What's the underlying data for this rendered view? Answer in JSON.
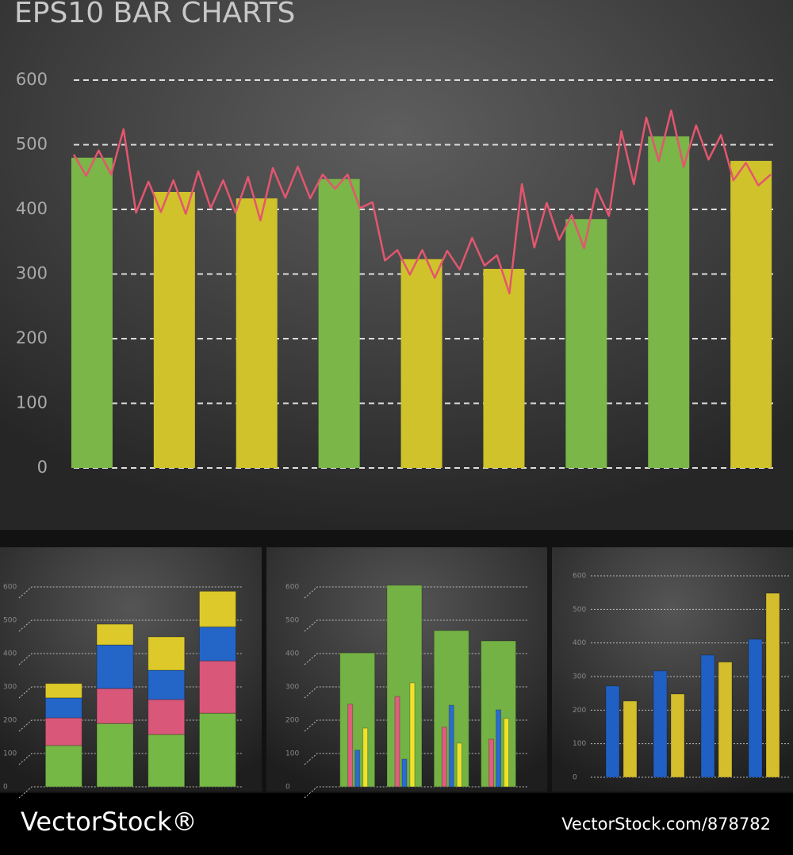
{
  "header": {
    "title": "EPS10 BAR CHARTS"
  },
  "footer": {
    "brand": "VectorStock®",
    "url": "VectorStock.com/878782"
  },
  "chart_data": [
    {
      "type": "barline",
      "ylim": [
        0,
        600
      ],
      "yticks": [
        0,
        100,
        200,
        300,
        400,
        500,
        600
      ],
      "grid": true,
      "series": [
        {
          "colors": [
            "#7ab648",
            "#cfc22a",
            "#cfc22a",
            "#7ab648",
            "#cfc22a",
            "#cfc22a",
            "#7ab648",
            "#7ab648",
            "#cfc22a"
          ],
          "values": [
            480,
            427,
            417,
            447,
            323,
            308,
            385,
            513,
            475
          ]
        },
        {
          "color": "#e4566f",
          "values": [
            485,
            452,
            491,
            454,
            524,
            395,
            443,
            396,
            445,
            393,
            459,
            402,
            445,
            395,
            450,
            383,
            464,
            418,
            466,
            417,
            454,
            432,
            454,
            402,
            411,
            321,
            337,
            299,
            337,
            294,
            336,
            307,
            356,
            313,
            329,
            270,
            439,
            341,
            410,
            353,
            391,
            340,
            432,
            390,
            521,
            439,
            542,
            475,
            553,
            466,
            530,
            477,
            515,
            445,
            472,
            437,
            454
          ]
        }
      ]
    },
    {
      "type": "stacked",
      "ylim": [
        0,
        600
      ],
      "yticks": [
        0,
        100,
        200,
        300,
        400,
        500,
        600
      ],
      "grid": true,
      "series": [
        {
          "color": "#76b846",
          "values": [
            124,
            190,
            157,
            221
          ]
        },
        {
          "color": "#d9587a",
          "values": [
            83,
            105,
            105,
            157
          ]
        },
        {
          "color": "#2466c8",
          "values": [
            60,
            131,
            88,
            102
          ]
        },
        {
          "color": "#ddc92a",
          "values": [
            43,
            62,
            100,
            107
          ]
        }
      ]
    },
    {
      "type": "overlay",
      "ylim": [
        0,
        600
      ],
      "yticks": [
        0,
        100,
        200,
        300,
        400,
        500,
        600
      ],
      "grid": true,
      "series": [
        {
          "color": "#74b245",
          "values": [
            402,
            605,
            469,
            438
          ]
        },
        {
          "color": "#e15c80",
          "values": [
            248,
            271,
            179,
            143
          ]
        },
        {
          "color": "#2a6bd0",
          "values": [
            110,
            83,
            245,
            231
          ]
        },
        {
          "color": "#eee22c",
          "values": [
            176,
            312,
            131,
            205
          ]
        }
      ]
    },
    {
      "type": "grouped",
      "ylim": [
        0,
        600
      ],
      "yticks": [
        0,
        100,
        200,
        300,
        400,
        500,
        600
      ],
      "grid": true,
      "series": [
        {
          "color": "#2060c4",
          "values": [
            272,
            317,
            364,
            411
          ]
        },
        {
          "color": "#d4be2c",
          "values": [
            227,
            248,
            343,
            548
          ]
        }
      ]
    }
  ]
}
